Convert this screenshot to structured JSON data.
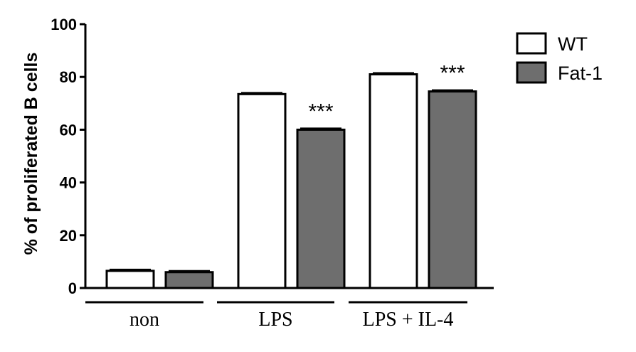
{
  "chart_data": {
    "type": "bar",
    "categories": [
      "non",
      "LPS",
      "LPS + IL-4"
    ],
    "series": [
      {
        "name": "WT",
        "values": [
          6.5,
          73.5,
          81
        ],
        "color": "#ffffff"
      },
      {
        "name": "Fat-1",
        "values": [
          6,
          60,
          74.5
        ],
        "color": "#6e6e6e"
      }
    ],
    "significance": [
      {
        "category": "LPS",
        "series": "Fat-1",
        "label": "***"
      },
      {
        "category": "LPS + IL-4",
        "series": "Fat-1",
        "label": "***"
      }
    ],
    "ylabel": "% of proliferated B cells",
    "xlabel": "",
    "ylim": [
      0,
      100
    ],
    "yticks": [
      0,
      20,
      40,
      60,
      80,
      100
    ],
    "grid": false,
    "legend_position": "top-right"
  }
}
